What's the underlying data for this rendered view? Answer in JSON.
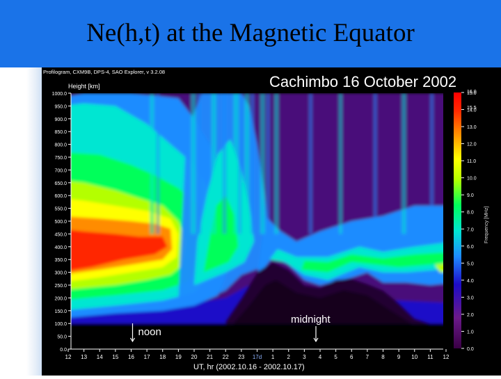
{
  "slide": {
    "title": "Ne(h,t) at the Magnetic Equator"
  },
  "header_line": "Profilogram, CXM9B, DPS-4, SAO Explorer, v 3.2.08",
  "chart_data": {
    "type": "heatmap",
    "title": "Cachimbo 16 October 2002",
    "ylabel": "Height [km]",
    "xlabel": "UT, hr (2002.10.16 - 2002.10.17)",
    "colorbar_label": "Frequency [MHz]",
    "ylim": [
      0,
      1000
    ],
    "yticks": [
      "1000.0",
      "950.0",
      "900.0",
      "850.0",
      "800.0",
      "750.0",
      "700.0",
      "650.0",
      "600.0",
      "550.0",
      "500.0",
      "450.0",
      "400.0",
      "350.0",
      "300.0",
      "250.0",
      "200.0",
      "150.0",
      "100.0",
      "50.0",
      "0.0"
    ],
    "xticks": [
      "12",
      "13",
      "14",
      "15",
      "16",
      "17",
      "18",
      "19",
      "20",
      "21",
      "22",
      "23",
      "17d",
      "1",
      "2",
      "3",
      "4",
      "5",
      "6",
      "7",
      "8",
      "9",
      "10",
      "11",
      "12"
    ],
    "colorbar_range": [
      0,
      15
    ],
    "colorbar_ticks": [
      "15.0",
      "14.0",
      "13.0",
      "12.0",
      "11.0",
      "10.0",
      "9.0",
      "8.0",
      "7.0",
      "6.0",
      "5.0",
      "4.0",
      "3.0",
      "2.0",
      "1.0",
      "0.0"
    ],
    "colorbar_top_label": "16.0",
    "colorbar_second_label": "15.5",
    "annotations": [
      {
        "text": "noon",
        "x_tick_index": 4
      },
      {
        "text": "midnight",
        "x_tick_index": 16
      }
    ],
    "colors": [
      "#3a0045",
      "#1d0cc8",
      "#1e8cff",
      "#00e6d2",
      "#00ff5a",
      "#b4ff00",
      "#ffff00",
      "#ff8c00",
      "#ff2800",
      "#ff0000"
    ]
  }
}
